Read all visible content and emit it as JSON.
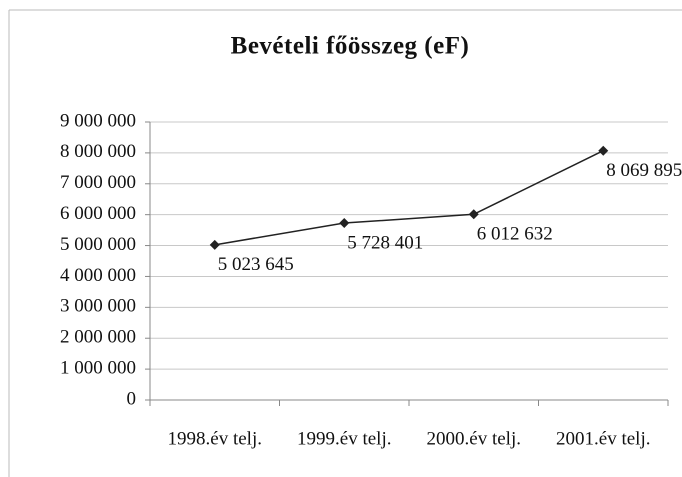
{
  "chart_data": {
    "type": "line",
    "title": "Bevételi főösszeg (eF)",
    "categories": [
      "1998.év telj.",
      "1999.év telj.",
      "2000.év telj.",
      "2001.év telj."
    ],
    "values": [
      5023645,
      5728401,
      6012632,
      8069895
    ],
    "value_labels": [
      "5 023 645",
      "5 728 401",
      "6 012 632",
      "8 069 895"
    ],
    "color": "#222222",
    "ylim": [
      0,
      9000000
    ],
    "yticks": [
      0,
      {
        "value": 1000000,
        "label": "1 000 000"
      },
      {
        "value": 2000000,
        "label": "2 000 000"
      },
      {
        "value": 3000000,
        "label": "3 000 000"
      },
      {
        "value": 4000000,
        "label": "4 000 000"
      },
      {
        "value": 5000000,
        "label": "5 000 000"
      },
      {
        "value": 6000000,
        "label": "6 000 000"
      },
      {
        "value": 7000000,
        "label": "7 000 000"
      },
      {
        "value": 8000000,
        "label": "8 000 000"
      },
      {
        "value": 9000000,
        "label": "9 000 000"
      }
    ],
    "grid": true
  }
}
